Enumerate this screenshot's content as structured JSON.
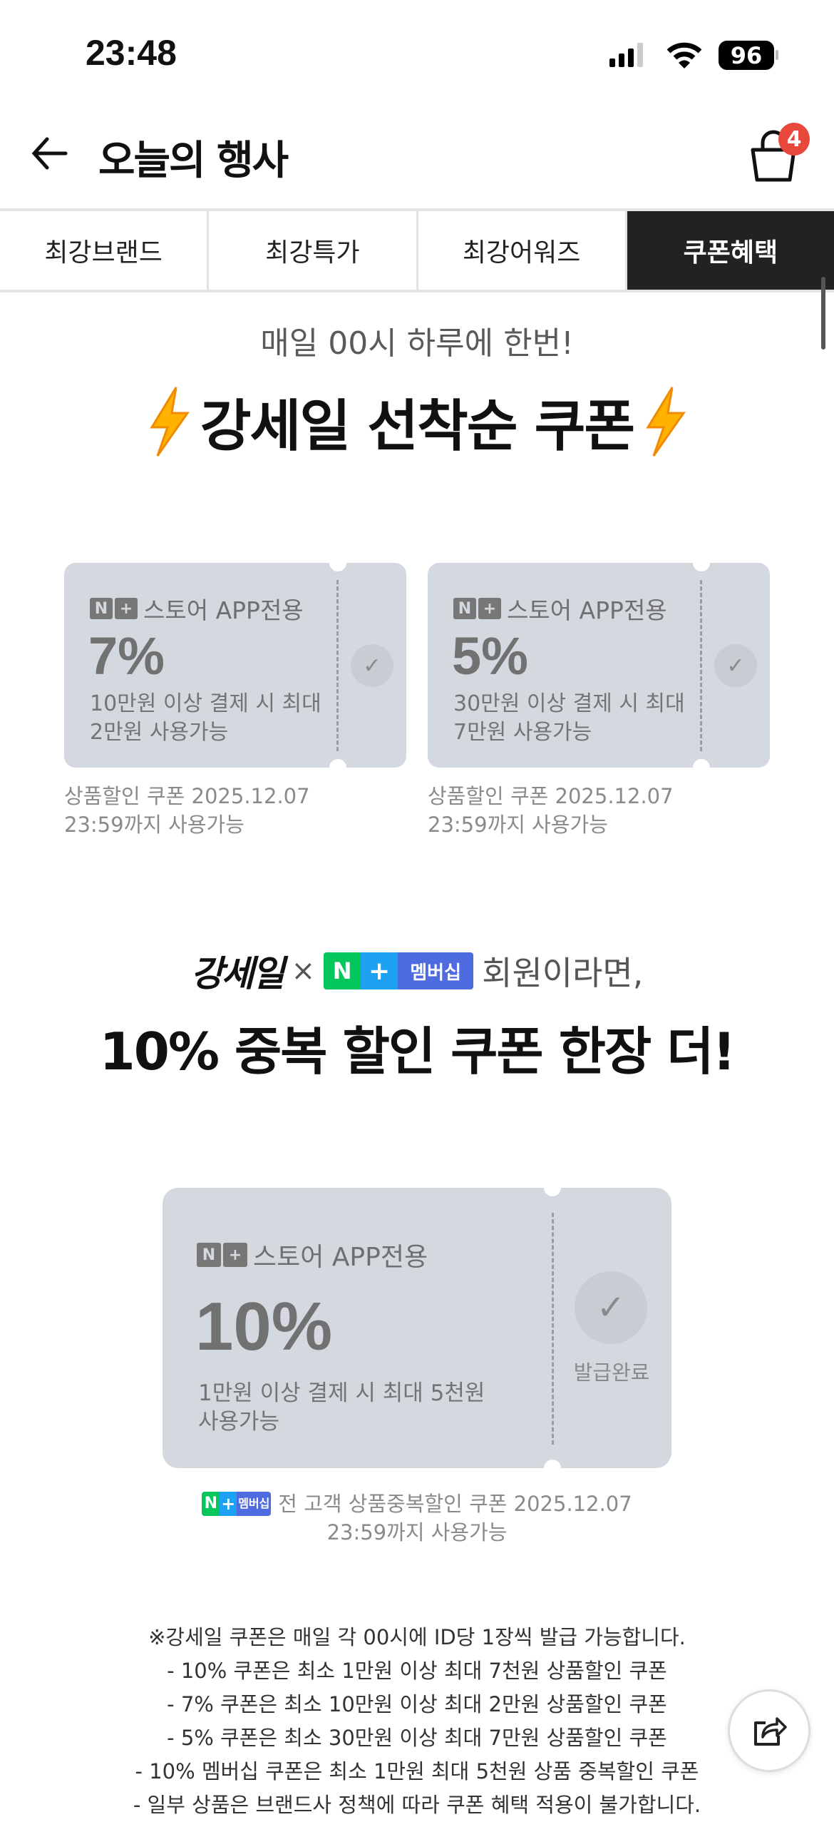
{
  "status_bar": {
    "time": "23:48",
    "battery": "96"
  },
  "header": {
    "title": "오늘의 행사",
    "cart_count": "4"
  },
  "tabs": [
    {
      "label": "최강브랜드",
      "active": false
    },
    {
      "label": "최강특가",
      "active": false
    },
    {
      "label": "최강어워즈",
      "active": false
    },
    {
      "label": "쿠폰혜택",
      "active": true
    }
  ],
  "promo": {
    "subtitle": "매일 00시 하루에 한번!",
    "title": "강세일 선착순 쿠폰"
  },
  "coupons": [
    {
      "brand_label": "스토어 APP전용",
      "percent": "7%",
      "desc1": "10만원 이상 결제 시 최대",
      "desc2": "2만원 사용가능",
      "caption1": "상품할인 쿠폰 2025.12.07",
      "caption2": "23:59까지 사용가능"
    },
    {
      "brand_label": "스토어 APP전용",
      "percent": "5%",
      "desc1": "30만원 이상 결제 시 최대",
      "desc2": "7만원 사용가능",
      "caption1": "상품할인 쿠폰 2025.12.07",
      "caption2": "23:59까지 사용가능"
    }
  ],
  "membership_banner": {
    "logo": "강세일",
    "times": "×",
    "badge_n": "N",
    "badge_plus": "+",
    "badge_label": "멤버십",
    "line1": "회원이라면,",
    "headline": "10% 중복 할인 쿠폰 한장 더!"
  },
  "member_coupon": {
    "brand_label": "스토어 APP전용",
    "percent": "10%",
    "desc1": "1만원 이상 결제 시 최대 5천원",
    "desc2": "사용가능",
    "status": "발급완료",
    "caption1": "전 고객 상품중복할인 쿠폰 2025.12.07",
    "caption2": "23:59까지 사용가능"
  },
  "notes": [
    "※강세일 쿠폰은 매일 각 00시에 ID당 1장씩 발급 가능합니다.",
    "- 10% 쿠폰은 최소 1만원 이상 최대 7천원 상품할인 쿠폰",
    "- 7% 쿠폰은 최소 10만원 이상 최대 2만원 상품할인 쿠폰",
    "- 5% 쿠폰은 최소 30만원 이상 최대 7만원 상품할인 쿠폰",
    "- 10% 멤버십 쿠폰은 최소 1만원 최대 5천원 상품 중복할인 쿠폰",
    "- 일부 상품은 브랜드사 정책에 따라 쿠폰 혜택 적용이 불가합니다."
  ],
  "colors": {
    "active_tab": "#222222",
    "coupon_bg": "#d4d9df",
    "badge_red": "#e8473b",
    "naver_green": "#03c75a",
    "member_blue": "#4f6be0"
  }
}
